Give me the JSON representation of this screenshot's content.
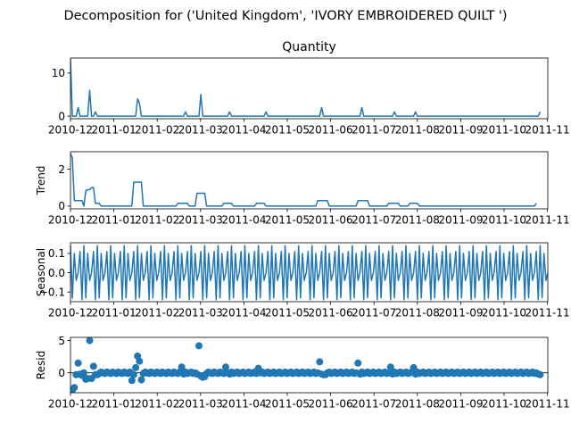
{
  "suptitle": "Decomposition for ('United Kingdom', 'IVORY EMBROIDERED QUILT ')",
  "x_ticks": [
    "2010-12",
    "2011-01",
    "2011-02",
    "2011-03",
    "2011-04",
    "2011-05",
    "2011-06",
    "2011-07",
    "2011-08",
    "2011-09",
    "2011-10",
    "2011-11"
  ],
  "colors": {
    "line": "#1f77b4",
    "axis": "#000000",
    "background": "#ffffff"
  },
  "chart_data": [
    {
      "type": "line",
      "title": "Quantity",
      "ylabel": "",
      "ylim": [
        -0.6,
        13.5
      ],
      "yticks": [
        "0",
        "10"
      ],
      "yticks_values": [
        0,
        10
      ],
      "points": [
        [
          0,
          13.3
        ],
        [
          1,
          0
        ],
        [
          3,
          0
        ],
        [
          4,
          2
        ],
        [
          5,
          0
        ],
        [
          9,
          0
        ],
        [
          10,
          6
        ],
        [
          11,
          0
        ],
        [
          12,
          0
        ],
        [
          13,
          1
        ],
        [
          14,
          0
        ],
        [
          34,
          0
        ],
        [
          35,
          4
        ],
        [
          36,
          3
        ],
        [
          37,
          0
        ],
        [
          59,
          0
        ],
        [
          60,
          1
        ],
        [
          61,
          0
        ],
        [
          67,
          0
        ],
        [
          68,
          5
        ],
        [
          69,
          0
        ],
        [
          82,
          0
        ],
        [
          83,
          1
        ],
        [
          84,
          0
        ],
        [
          101,
          0
        ],
        [
          102,
          1
        ],
        [
          103,
          0
        ],
        [
          130,
          0
        ],
        [
          131,
          2
        ],
        [
          132,
          0
        ],
        [
          151,
          0
        ],
        [
          152,
          2
        ],
        [
          153,
          0
        ],
        [
          168,
          0
        ],
        [
          169,
          1
        ],
        [
          170,
          0
        ],
        [
          179,
          0
        ],
        [
          180,
          1
        ],
        [
          181,
          0
        ],
        [
          244,
          0
        ],
        [
          245,
          1
        ]
      ]
    },
    {
      "type": "line",
      "title": "",
      "ylabel": "Trend",
      "ylim": [
        -0.15,
        2.95
      ],
      "yticks": [
        "0",
        "2"
      ],
      "yticks_values": [
        0,
        2
      ],
      "points": [
        [
          0,
          2.85
        ],
        [
          1,
          2.6
        ],
        [
          2,
          0.3
        ],
        [
          6,
          0.3
        ],
        [
          7,
          0
        ],
        [
          8,
          0.85
        ],
        [
          10,
          0.9
        ],
        [
          11,
          1.0
        ],
        [
          12,
          1.0
        ],
        [
          13,
          0.15
        ],
        [
          15,
          0.15
        ],
        [
          16,
          0
        ],
        [
          32,
          0
        ],
        [
          33,
          1.3
        ],
        [
          37,
          1.3
        ],
        [
          38,
          0
        ],
        [
          55,
          0
        ],
        [
          56,
          0.15
        ],
        [
          61,
          0.15
        ],
        [
          62,
          0
        ],
        [
          65,
          0
        ],
        [
          66,
          0.7
        ],
        [
          70,
          0.7
        ],
        [
          71,
          0
        ],
        [
          79,
          0
        ],
        [
          80,
          0.15
        ],
        [
          84,
          0.15
        ],
        [
          85,
          0
        ],
        [
          96,
          0
        ],
        [
          97,
          0.15
        ],
        [
          101,
          0.15
        ],
        [
          102,
          0
        ],
        [
          128,
          0
        ],
        [
          129,
          0.3
        ],
        [
          134,
          0.3
        ],
        [
          135,
          0
        ],
        [
          149,
          0
        ],
        [
          150,
          0.3
        ],
        [
          155,
          0.3
        ],
        [
          156,
          0
        ],
        [
          165,
          0
        ],
        [
          166,
          0.15
        ],
        [
          171,
          0.15
        ],
        [
          172,
          0
        ],
        [
          176,
          0
        ],
        [
          177,
          0.15
        ],
        [
          181,
          0.15
        ],
        [
          182,
          0
        ],
        [
          242,
          0
        ],
        [
          243,
          0.15
        ]
      ]
    },
    {
      "type": "line",
      "title": "",
      "ylabel": "Seasonal",
      "ylim": [
        -0.15,
        0.155
      ],
      "yticks": [
        "−0.1",
        "0.0",
        "0.1"
      ],
      "yticks_values": [
        -0.1,
        0.0,
        0.1
      ],
      "period": 7,
      "pattern": [
        0.14,
        -0.13,
        0.1,
        -0.04,
        0.0,
        0.11,
        -0.14
      ]
    },
    {
      "type": "scatter",
      "title": "",
      "ylabel": "Resid",
      "ylim": [
        -3.1,
        5.5
      ],
      "yticks": [
        "0",
        "5"
      ],
      "yticks_values": [
        0,
        5
      ],
      "highlight": [
        [
          1,
          -2.7
        ],
        [
          2,
          -2.3
        ],
        [
          4,
          1.5
        ],
        [
          6,
          -0.4
        ],
        [
          7,
          0.0
        ],
        [
          10,
          5.0
        ],
        [
          12,
          1.0
        ],
        [
          13,
          -0.3
        ],
        [
          14,
          -0.3
        ],
        [
          32,
          -1.2
        ],
        [
          33,
          -0.3
        ],
        [
          34,
          0.8
        ],
        [
          35,
          2.6
        ],
        [
          36,
          1.8
        ],
        [
          37,
          -1.1
        ],
        [
          58,
          0.9
        ],
        [
          67,
          4.2
        ],
        [
          68,
          -0.5
        ],
        [
          69,
          -0.7
        ],
        [
          70,
          -0.6
        ],
        [
          81,
          0.9
        ],
        [
          98,
          0.7
        ],
        [
          130,
          1.7
        ],
        [
          133,
          -0.3
        ],
        [
          150,
          1.5
        ],
        [
          167,
          0.9
        ],
        [
          179,
          0.8
        ]
      ],
      "baseline_points": [
        [
          3,
          -0.3
        ],
        [
          5,
          -0.2
        ],
        [
          8,
          -1.0
        ],
        [
          9,
          -0.9
        ],
        [
          11,
          -0.9
        ],
        [
          15,
          -0.1
        ],
        [
          16,
          0.1
        ],
        [
          17,
          0.0
        ],
        [
          18,
          -0.1
        ],
        [
          19,
          0.1
        ],
        [
          20,
          0.0
        ],
        [
          21,
          -0.1
        ],
        [
          22,
          0.1
        ],
        [
          23,
          0.0
        ],
        [
          24,
          -0.1
        ],
        [
          25,
          0.1
        ],
        [
          26,
          0.0
        ],
        [
          27,
          -0.1
        ],
        [
          28,
          0.1
        ],
        [
          29,
          0.0
        ],
        [
          30,
          -0.1
        ],
        [
          31,
          0.1
        ],
        [
          38,
          -0.1
        ],
        [
          39,
          0.1
        ],
        [
          40,
          0.0
        ],
        [
          41,
          -0.1
        ],
        [
          42,
          0.1
        ],
        [
          43,
          0.0
        ],
        [
          44,
          -0.1
        ],
        [
          45,
          0.1
        ],
        [
          46,
          0.0
        ],
        [
          47,
          -0.1
        ],
        [
          48,
          0.1
        ],
        [
          49,
          0.0
        ],
        [
          50,
          -0.1
        ],
        [
          51,
          0.1
        ],
        [
          52,
          0.0
        ],
        [
          53,
          -0.1
        ],
        [
          54,
          0.1
        ],
        [
          55,
          0.0
        ],
        [
          56,
          -0.1
        ],
        [
          57,
          0.1
        ],
        [
          59,
          -0.2
        ],
        [
          60,
          0.1
        ],
        [
          61,
          -0.1
        ],
        [
          62,
          0.0
        ],
        [
          63,
          0.1
        ],
        [
          64,
          -0.1
        ],
        [
          65,
          0.0
        ],
        [
          66,
          -0.2
        ],
        [
          71,
          -0.1
        ],
        [
          72,
          0.1
        ],
        [
          73,
          0.0
        ],
        [
          74,
          -0.1
        ],
        [
          75,
          0.1
        ],
        [
          76,
          0.0
        ],
        [
          77,
          -0.1
        ],
        [
          78,
          0.1
        ],
        [
          79,
          0.0
        ],
        [
          80,
          -0.1
        ],
        [
          82,
          0.0
        ],
        [
          83,
          -0.2
        ],
        [
          84,
          0.1
        ],
        [
          85,
          -0.1
        ],
        [
          86,
          0.0
        ],
        [
          87,
          0.1
        ],
        [
          88,
          -0.1
        ],
        [
          89,
          0.0
        ],
        [
          90,
          0.1
        ],
        [
          91,
          -0.1
        ],
        [
          92,
          0.0
        ],
        [
          93,
          0.1
        ],
        [
          94,
          -0.1
        ],
        [
          95,
          0.0
        ],
        [
          96,
          0.1
        ],
        [
          97,
          -0.1
        ],
        [
          99,
          0.0
        ],
        [
          100,
          0.1
        ],
        [
          101,
          -0.1
        ],
        [
          102,
          0.0
        ],
        [
          103,
          0.1
        ],
        [
          104,
          -0.1
        ],
        [
          105,
          0.0
        ],
        [
          106,
          0.1
        ],
        [
          107,
          -0.1
        ],
        [
          108,
          0.0
        ],
        [
          109,
          0.1
        ],
        [
          110,
          -0.1
        ],
        [
          111,
          0.0
        ],
        [
          112,
          0.1
        ],
        [
          113,
          -0.1
        ],
        [
          114,
          0.0
        ],
        [
          115,
          0.1
        ],
        [
          116,
          -0.1
        ],
        [
          117,
          0.0
        ],
        [
          118,
          0.1
        ],
        [
          119,
          -0.1
        ],
        [
          120,
          0.0
        ],
        [
          121,
          0.1
        ],
        [
          122,
          -0.1
        ],
        [
          123,
          0.0
        ],
        [
          124,
          0.1
        ],
        [
          125,
          -0.1
        ],
        [
          126,
          0.0
        ],
        [
          127,
          0.1
        ],
        [
          128,
          -0.1
        ],
        [
          129,
          0.0
        ],
        [
          131,
          -0.2
        ],
        [
          132,
          -0.3
        ],
        [
          134,
          0.0
        ],
        [
          135,
          0.1
        ],
        [
          136,
          -0.1
        ],
        [
          137,
          0.0
        ],
        [
          138,
          0.1
        ],
        [
          139,
          -0.1
        ],
        [
          140,
          0.0
        ],
        [
          141,
          0.1
        ],
        [
          142,
          -0.1
        ],
        [
          143,
          0.0
        ],
        [
          144,
          0.1
        ],
        [
          145,
          -0.1
        ],
        [
          146,
          0.0
        ],
        [
          147,
          0.1
        ],
        [
          148,
          -0.1
        ],
        [
          149,
          0.0
        ],
        [
          151,
          -0.2
        ],
        [
          152,
          0.1
        ],
        [
          153,
          -0.1
        ],
        [
          154,
          0.0
        ],
        [
          155,
          0.1
        ],
        [
          156,
          -0.1
        ],
        [
          157,
          0.0
        ],
        [
          158,
          0.1
        ],
        [
          159,
          -0.1
        ],
        [
          160,
          0.0
        ],
        [
          161,
          0.1
        ],
        [
          162,
          -0.1
        ],
        [
          163,
          0.0
        ],
        [
          164,
          0.1
        ],
        [
          165,
          -0.1
        ],
        [
          166,
          0.0
        ],
        [
          168,
          -0.2
        ],
        [
          169,
          0.1
        ],
        [
          170,
          -0.1
        ],
        [
          171,
          0.0
        ],
        [
          172,
          0.1
        ],
        [
          173,
          -0.1
        ],
        [
          174,
          0.0
        ],
        [
          175,
          0.1
        ],
        [
          176,
          -0.1
        ],
        [
          177,
          0.0
        ],
        [
          178,
          0.1
        ],
        [
          180,
          -0.2
        ],
        [
          181,
          0.1
        ],
        [
          182,
          -0.1
        ],
        [
          183,
          0.0
        ],
        [
          184,
          0.1
        ],
        [
          185,
          -0.1
        ],
        [
          186,
          0.0
        ],
        [
          187,
          0.1
        ],
        [
          188,
          -0.1
        ],
        [
          189,
          0.0
        ],
        [
          190,
          0.1
        ],
        [
          191,
          -0.1
        ],
        [
          192,
          0.0
        ],
        [
          193,
          0.1
        ],
        [
          194,
          -0.1
        ],
        [
          195,
          0.0
        ],
        [
          196,
          0.1
        ],
        [
          197,
          -0.1
        ],
        [
          198,
          0.0
        ],
        [
          199,
          0.1
        ],
        [
          200,
          -0.1
        ],
        [
          201,
          0.0
        ],
        [
          202,
          0.1
        ],
        [
          203,
          -0.1
        ],
        [
          204,
          0.0
        ],
        [
          205,
          0.1
        ],
        [
          206,
          -0.1
        ],
        [
          207,
          0.0
        ],
        [
          208,
          0.1
        ],
        [
          209,
          -0.1
        ],
        [
          210,
          0.0
        ],
        [
          211,
          0.1
        ],
        [
          212,
          -0.1
        ],
        [
          213,
          0.0
        ],
        [
          214,
          0.1
        ],
        [
          215,
          -0.1
        ],
        [
          216,
          0.0
        ],
        [
          217,
          0.1
        ],
        [
          218,
          -0.1
        ],
        [
          219,
          0.0
        ],
        [
          220,
          0.1
        ],
        [
          221,
          -0.1
        ],
        [
          222,
          0.0
        ],
        [
          223,
          0.1
        ],
        [
          224,
          -0.1
        ],
        [
          225,
          0.0
        ],
        [
          226,
          0.1
        ],
        [
          227,
          -0.1
        ],
        [
          228,
          0.0
        ],
        [
          229,
          0.1
        ],
        [
          230,
          -0.1
        ],
        [
          231,
          0.0
        ],
        [
          232,
          0.1
        ],
        [
          233,
          -0.1
        ],
        [
          234,
          0.0
        ],
        [
          235,
          0.1
        ],
        [
          236,
          -0.1
        ],
        [
          237,
          0.0
        ],
        [
          238,
          0.1
        ],
        [
          239,
          -0.1
        ],
        [
          240,
          0.0
        ],
        [
          241,
          0.1
        ],
        [
          242,
          -0.1
        ],
        [
          243,
          0.0
        ],
        [
          244,
          -0.2
        ],
        [
          245,
          -0.3
        ]
      ]
    }
  ]
}
